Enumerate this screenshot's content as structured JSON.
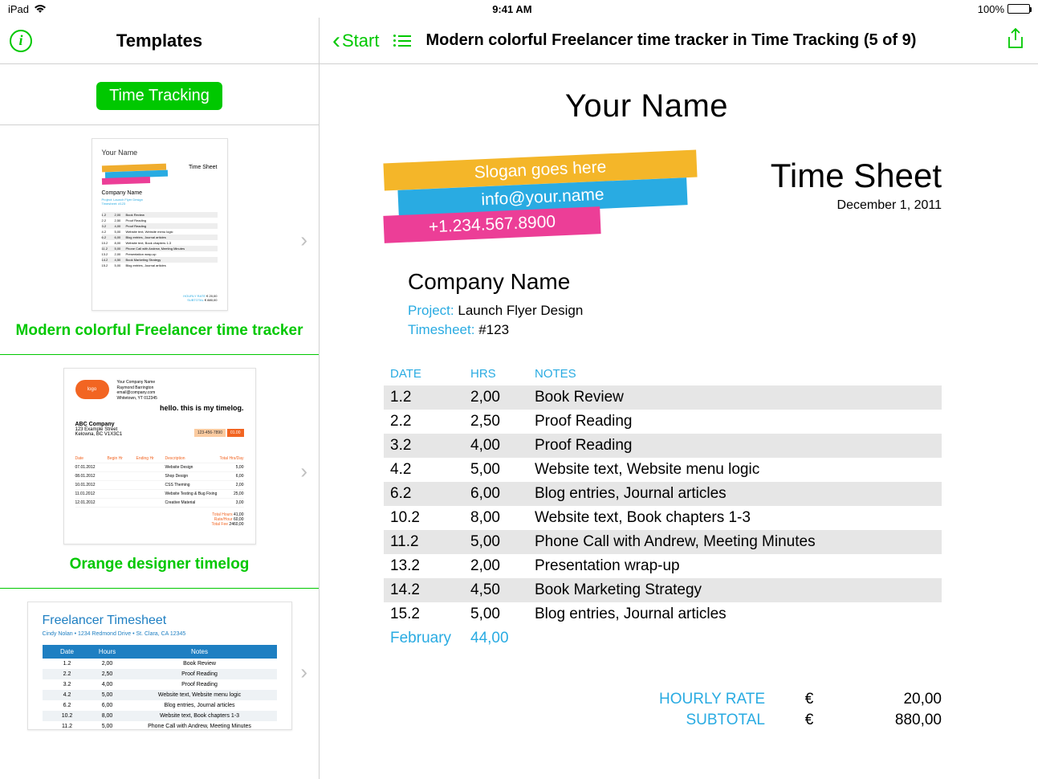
{
  "statusbar": {
    "device": "iPad",
    "time": "9:41 AM",
    "battery_pct": "100%"
  },
  "navbar": {
    "sidebar_title": "Templates",
    "back_label": "Start",
    "title": "Modern colorful Freelancer time tracker in Time Tracking (5 of 9)"
  },
  "sidebar": {
    "category": "Time Tracking",
    "items": [
      {
        "label": "Modern colorful Freelancer time tracker"
      },
      {
        "label": "Orange designer timelog"
      },
      {
        "label": ""
      }
    ]
  },
  "thumb3": {
    "title": "Freelancer Timesheet",
    "meta": "Cindy Nolan • 1234 Redmond Drive • St. Clara, CA 12345",
    "headers": [
      "Date",
      "Hours",
      "Notes"
    ],
    "rows": [
      [
        "1.2",
        "2,00",
        "Book Review"
      ],
      [
        "2.2",
        "2,50",
        "Proof Reading"
      ],
      [
        "3.2",
        "4,00",
        "Proof Reading"
      ],
      [
        "4.2",
        "5,00",
        "Website text, Website menu logic"
      ],
      [
        "6.2",
        "6,00",
        "Blog entries, Journal articles"
      ],
      [
        "10.2",
        "8,00",
        "Website text, Book chapters 1-3"
      ],
      [
        "11.2",
        "5,00",
        "Phone Call with Andrew, Meeting Minutes"
      ]
    ]
  },
  "doc": {
    "your_name": "Your Name",
    "slogan": "Slogan goes here",
    "email": "info@your.name",
    "phone": "+1.234.567.8900",
    "timesheet_title": "Time Sheet",
    "timesheet_date": "December 1, 2011",
    "company": "Company Name",
    "project_label": "Project:",
    "project_value": "Launch Flyer Design",
    "ts_no_label": "Timesheet:",
    "ts_no_value": "#123",
    "headers": {
      "date": "DATE",
      "hrs": "HRS",
      "notes": "NOTES"
    },
    "rows": [
      {
        "date": "1.2",
        "hrs": "2,00",
        "notes": "Book Review"
      },
      {
        "date": "2.2",
        "hrs": "2,50",
        "notes": "Proof Reading"
      },
      {
        "date": "3.2",
        "hrs": "4,00",
        "notes": "Proof Reading"
      },
      {
        "date": "4.2",
        "hrs": "5,00",
        "notes": "Website text, Website menu logic"
      },
      {
        "date": "6.2",
        "hrs": "6,00",
        "notes": "Blog entries, Journal articles"
      },
      {
        "date": "10.2",
        "hrs": "8,00",
        "notes": "Website text, Book chapters 1-3"
      },
      {
        "date": "11.2",
        "hrs": "5,00",
        "notes": "Phone Call with Andrew, Meeting Minutes"
      },
      {
        "date": "13.2",
        "hrs": "2,00",
        "notes": "Presentation wrap-up"
      },
      {
        "date": "14.2",
        "hrs": "4,50",
        "notes": "Book Marketing Strategy"
      },
      {
        "date": "15.2",
        "hrs": "5,00",
        "notes": "Blog entries, Journal articles"
      }
    ],
    "total_row": {
      "date": "February",
      "hrs": "44,00"
    },
    "totals": {
      "rate_label": "HOURLY RATE",
      "subtotal_label": "SUBTOTAL",
      "currency": "€",
      "rate_value": "20,00",
      "subtotal_value": "880,00"
    }
  },
  "colors": {
    "accent_green": "#00c800",
    "bar_yellow": "#f4b629",
    "bar_blue": "#29abe2",
    "bar_pink": "#ec3e97",
    "row_alt": "#e6e6e6",
    "orange": "#f26522",
    "blue_dark": "#1e7fc2"
  }
}
